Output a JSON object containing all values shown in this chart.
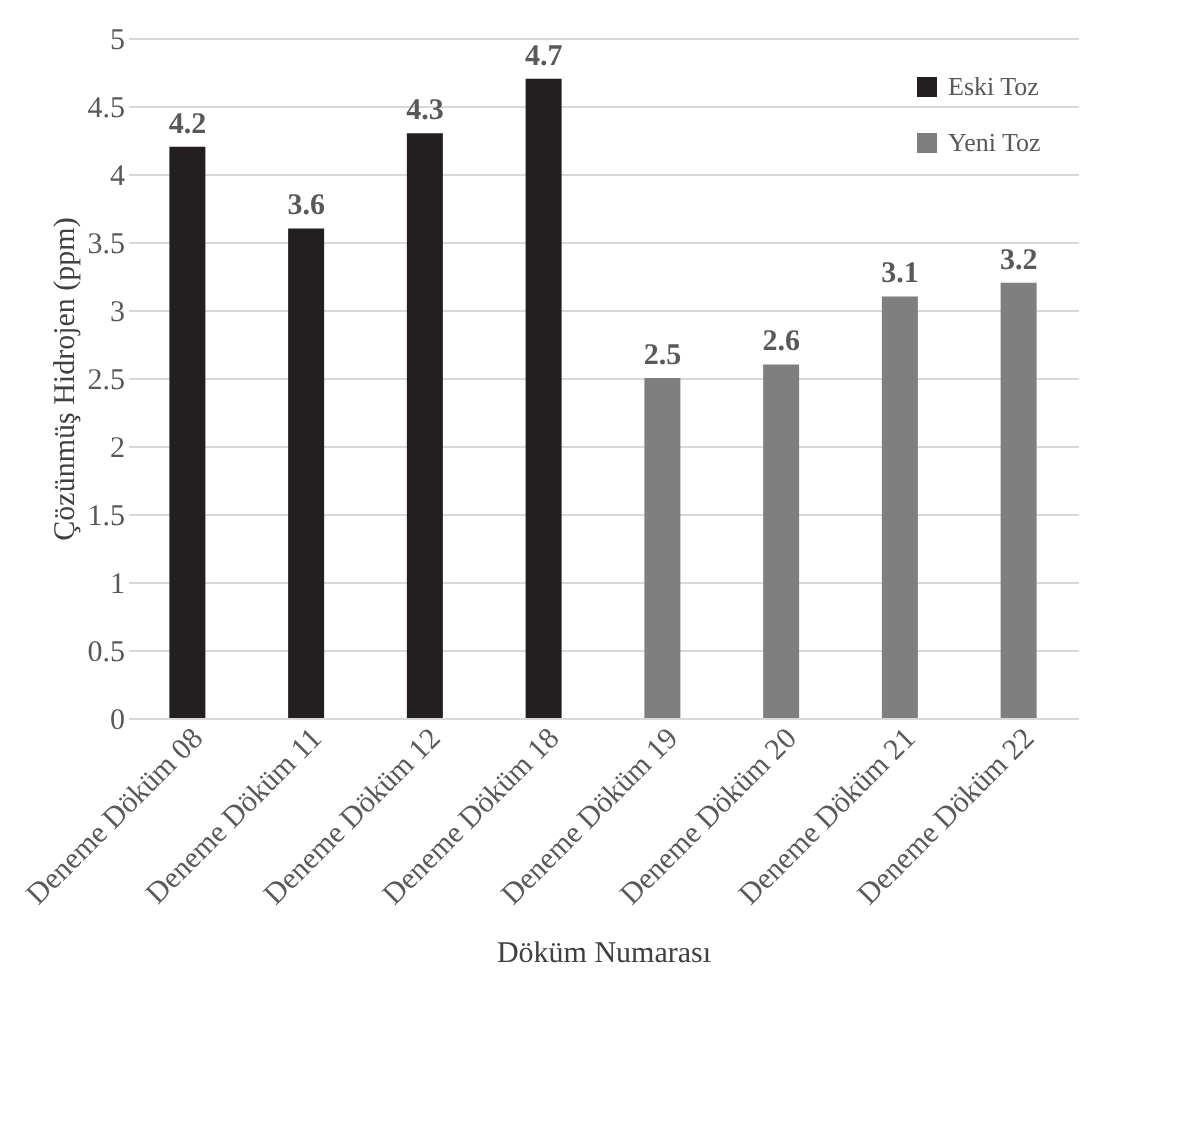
{
  "chart_data": {
    "type": "bar",
    "xlabel": "Döküm Numarası",
    "ylabel": "Çözünmüş Hidrojen (ppm)",
    "categories": [
      "Deneme Döküm 08",
      "Deneme Döküm 11",
      "Deneme Döküm 12",
      "Deneme Döküm 18",
      "Deneme Döküm 19",
      "Deneme Döküm 20",
      "Deneme Döküm 21",
      "Deneme Döküm 22"
    ],
    "series": [
      {
        "name": "Eski Toz",
        "color": "#231f20",
        "values": [
          4.2,
          3.6,
          4.3,
          4.7,
          null,
          null,
          null,
          null
        ]
      },
      {
        "name": "Yeni Toz",
        "color": "#7f7f7f",
        "values": [
          null,
          null,
          null,
          null,
          2.5,
          2.6,
          3.1,
          3.2
        ]
      }
    ],
    "ylim": [
      0,
      5
    ],
    "yticks": [
      0,
      0.5,
      1,
      1.5,
      2,
      2.5,
      3,
      3.5,
      4,
      4.5,
      5
    ],
    "grid": "y",
    "legend": "top right",
    "data_labels": true
  }
}
